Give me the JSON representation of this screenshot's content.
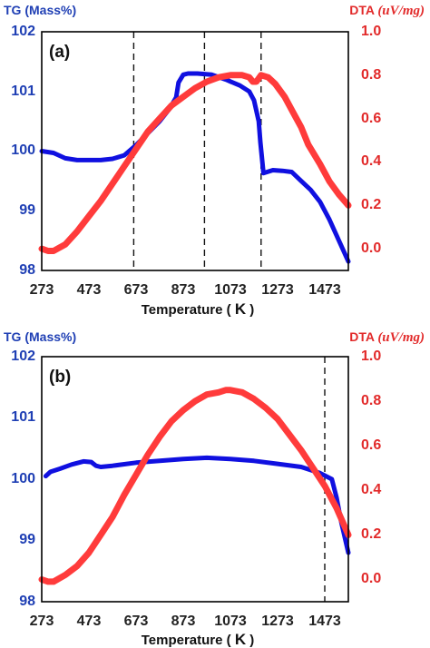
{
  "colors": {
    "tg": "#1010e0",
    "dta": "#ff3b3b",
    "tg_axis": "#1f3fb4",
    "dta_axis": "#e22a2a"
  },
  "chart_data": [
    {
      "type": "line",
      "panel_label": "(a)",
      "xlabel": "Temperature",
      "xunit": "K",
      "xlim": [
        273,
        1573
      ],
      "xticks": [
        "273",
        "473",
        "673",
        "873",
        "1073",
        "1273",
        "1473"
      ],
      "y_left_label": "TG (Mass%)",
      "y_left_lim": [
        98,
        102
      ],
      "y_left_ticks": [
        "98",
        "99",
        "100",
        "101",
        "102"
      ],
      "y_right_label": "DTA",
      "y_right_unit": "(uV/mg)",
      "y_right_lim": [
        -0.1,
        1.0
      ],
      "y_right_ticks": [
        "0.0",
        "0.2",
        "0.4",
        "0.6",
        "0.8",
        "1.0"
      ],
      "vlines": [
        663,
        963,
        1203
      ],
      "series": [
        {
          "axis": "left",
          "x": [
            273,
            323,
            373,
            423,
            473,
            523,
            573,
            623,
            673,
            723,
            773,
            813,
            843,
            853,
            873,
            893,
            933,
            993,
            1053,
            1113,
            1153,
            1173,
            1193,
            1200,
            1213,
            1253,
            1293,
            1333,
            1373,
            1413,
            1453,
            1493,
            1533,
            1573
          ],
          "values": [
            100.0,
            99.97,
            99.88,
            99.85,
            99.85,
            99.85,
            99.87,
            99.93,
            100.1,
            100.3,
            100.5,
            100.7,
            100.9,
            101.15,
            101.28,
            101.3,
            101.3,
            101.28,
            101.2,
            101.1,
            101.0,
            100.85,
            100.5,
            100.15,
            99.63,
            99.68,
            99.67,
            99.65,
            99.5,
            99.35,
            99.15,
            98.85,
            98.5,
            98.15
          ]
        },
        {
          "axis": "right",
          "x": [
            273,
            300,
            323,
            373,
            423,
            473,
            523,
            573,
            623,
            673,
            723,
            773,
            823,
            873,
            923,
            973,
            1023,
            1073,
            1123,
            1153,
            1168,
            1183,
            1203,
            1233,
            1263,
            1303,
            1343,
            1373,
            1403,
            1453,
            1493,
            1533,
            1573
          ],
          "values": [
            0.0,
            -0.01,
            -0.01,
            0.02,
            0.08,
            0.15,
            0.22,
            0.3,
            0.38,
            0.46,
            0.54,
            0.6,
            0.66,
            0.7,
            0.74,
            0.77,
            0.79,
            0.8,
            0.8,
            0.79,
            0.77,
            0.77,
            0.8,
            0.79,
            0.76,
            0.7,
            0.62,
            0.56,
            0.48,
            0.39,
            0.31,
            0.25,
            0.2
          ]
        }
      ]
    },
    {
      "type": "line",
      "panel_label": "(b)",
      "xlabel": "Temperature",
      "xunit": "K",
      "xlim": [
        273,
        1573
      ],
      "xticks": [
        "273",
        "473",
        "673",
        "873",
        "1073",
        "1273",
        "1473"
      ],
      "y_left_label": "TG (Mass%)",
      "y_left_lim": [
        98,
        102
      ],
      "y_left_ticks": [
        "98",
        "99",
        "100",
        "101",
        "102"
      ],
      "y_right_label": "DTA",
      "y_right_unit": "(uV/mg)",
      "y_right_lim": [
        -0.1,
        1.0
      ],
      "y_right_ticks": [
        "0.0",
        "0.2",
        "0.4",
        "0.6",
        "0.8",
        "1.0"
      ],
      "vlines": [
        1473
      ],
      "series": [
        {
          "axis": "left",
          "x": [
            290,
            310,
            350,
            400,
            450,
            483,
            503,
            523,
            573,
            673,
            773,
            873,
            973,
            1073,
            1173,
            1273,
            1373,
            1453,
            1503,
            1523,
            1543,
            1573
          ],
          "values": [
            100.05,
            100.12,
            100.17,
            100.24,
            100.29,
            100.28,
            100.22,
            100.2,
            100.22,
            100.27,
            100.3,
            100.33,
            100.35,
            100.33,
            100.3,
            100.25,
            100.2,
            100.1,
            100.0,
            99.7,
            99.3,
            98.8
          ]
        },
        {
          "axis": "right",
          "x": [
            273,
            300,
            323,
            373,
            423,
            473,
            523,
            573,
            623,
            673,
            723,
            773,
            823,
            873,
            923,
            973,
            1023,
            1053,
            1073,
            1123,
            1173,
            1223,
            1273,
            1323,
            1373,
            1423,
            1473,
            1523,
            1573
          ],
          "values": [
            0.0,
            -0.01,
            -0.01,
            0.02,
            0.06,
            0.12,
            0.2,
            0.28,
            0.38,
            0.47,
            0.56,
            0.64,
            0.71,
            0.76,
            0.8,
            0.83,
            0.84,
            0.85,
            0.85,
            0.84,
            0.81,
            0.77,
            0.72,
            0.65,
            0.58,
            0.5,
            0.42,
            0.32,
            0.2
          ]
        }
      ]
    }
  ]
}
